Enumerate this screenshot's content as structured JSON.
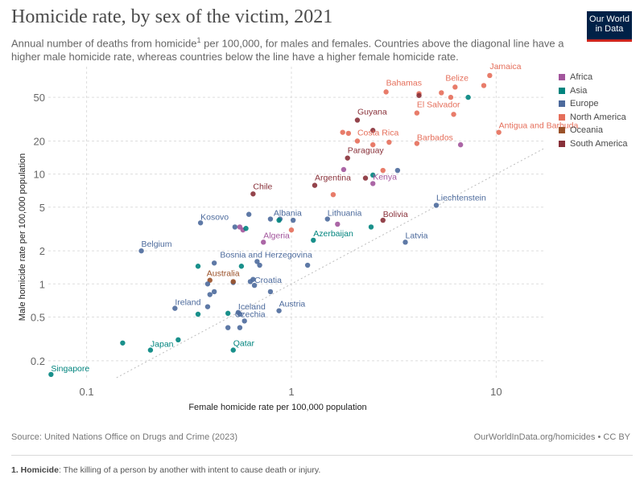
{
  "header": {
    "title": "Homicide rate, by sex of the victim, 2021",
    "subtitle_pre": "Annual number of deaths from homicide",
    "subtitle_sup": "1",
    "subtitle_post": " per 100,000, for males and females. Countries above the diagonal line have a higher male homicide rate, whereas countries below the line have a higher female homicide rate.",
    "logo_line1": "Our World",
    "logo_line2": "in Data"
  },
  "legend": [
    {
      "label": "Africa",
      "color": "#a2559c"
    },
    {
      "label": "Asia",
      "color": "#00847e"
    },
    {
      "label": "Europe",
      "color": "#4c6a9c"
    },
    {
      "label": "North America",
      "color": "#e56e5a"
    },
    {
      "label": "Oceania",
      "color": "#9a5129"
    },
    {
      "label": "South America",
      "color": "#883039"
    }
  ],
  "footer": {
    "source": "Source: United Nations Office on Drugs and Crime (2023)",
    "link": "OurWorldInData.org/homicides • CC BY",
    "footnote_term": "1. Homicide",
    "footnote_text": ": The killing of a person by another with intent to cause death or injury."
  },
  "chart_data": {
    "type": "scatter",
    "title": "Homicide rate, by sex of the victim, 2021",
    "xlabel": "Female homicide rate per 100,000 population",
    "ylabel": "Male homicide rate per 100,000 population",
    "xscale": "log",
    "yscale": "log",
    "xlim": [
      0.065,
      17
    ],
    "ylim": [
      0.14,
      95
    ],
    "xticks": [
      0.1,
      1,
      10
    ],
    "xtick_labels": [
      "0.1",
      "1",
      "10"
    ],
    "yticks": [
      0.2,
      0.5,
      1,
      2,
      5,
      10,
      20,
      50
    ],
    "ytick_labels": [
      "0.2",
      "0.5",
      "1",
      "2",
      "5",
      "10",
      "20",
      "50"
    ],
    "diagonal": "y = x",
    "points": [
      {
        "label": "Jamaica",
        "region": "North America",
        "x": 9.3,
        "y": 79,
        "show_label": true
      },
      {
        "label": "Bahamas",
        "region": "North America",
        "x": 2.9,
        "y": 56,
        "show_label": true
      },
      {
        "label": "Belize",
        "region": "North America",
        "x": 6.3,
        "y": 62,
        "show_label": true
      },
      {
        "label": "El Salvador",
        "region": "North America",
        "x": 4.1,
        "y": 36,
        "show_label": true
      },
      {
        "label": "Antigua and Barbuda",
        "region": "North America",
        "x": 10.3,
        "y": 24,
        "show_label": true
      },
      {
        "label": "Costa Rica",
        "region": "North America",
        "x": 2.1,
        "y": 20,
        "show_label": true
      },
      {
        "label": "Barbados",
        "region": "North America",
        "x": 4.1,
        "y": 19,
        "show_label": true
      },
      {
        "label": "Guyana",
        "region": "South America",
        "x": 2.1,
        "y": 31,
        "show_label": true
      },
      {
        "label": "Paraguay",
        "region": "South America",
        "x": 1.88,
        "y": 14,
        "show_label": true
      },
      {
        "label": "Argentina",
        "region": "South America",
        "x": 1.3,
        "y": 7.9,
        "show_label": true
      },
      {
        "label": "Chile",
        "region": "South America",
        "x": 0.65,
        "y": 6.6,
        "show_label": true
      },
      {
        "label": "Bolivia",
        "region": "South America",
        "x": 2.8,
        "y": 3.8,
        "show_label": true
      },
      {
        "label": "Kenya",
        "region": "Africa",
        "x": 2.5,
        "y": 8.2,
        "show_label": true
      },
      {
        "label": "Algeria",
        "region": "Africa",
        "x": 0.73,
        "y": 2.4,
        "show_label": true
      },
      {
        "label": "Azerbaijan",
        "region": "Asia",
        "x": 1.28,
        "y": 2.5,
        "show_label": true
      },
      {
        "label": "Japan",
        "region": "Asia",
        "x": 0.205,
        "y": 0.25,
        "show_label": true
      },
      {
        "label": "Qatar",
        "region": "Asia",
        "x": 0.52,
        "y": 0.25,
        "show_label": true
      },
      {
        "label": "Singapore",
        "region": "Asia",
        "x": 0.067,
        "y": 0.15,
        "show_label": true
      },
      {
        "label": "Liechtenstein",
        "region": "Europe",
        "x": 5.1,
        "y": 5.2,
        "show_label": true
      },
      {
        "label": "Latvia",
        "region": "Europe",
        "x": 3.6,
        "y": 2.4,
        "show_label": true
      },
      {
        "label": "Lithuania",
        "region": "Europe",
        "x": 1.5,
        "y": 3.9,
        "show_label": true
      },
      {
        "label": "Albania",
        "region": "Europe",
        "x": 0.88,
        "y": 3.9,
        "show_label": true
      },
      {
        "label": "Kosovo",
        "region": "Europe",
        "x": 0.36,
        "y": 3.6,
        "show_label": true
      },
      {
        "label": "Belgium",
        "region": "Europe",
        "x": 0.185,
        "y": 2.0,
        "show_label": true
      },
      {
        "label": "Bosnia and Herzegovina",
        "region": "Europe",
        "x": 0.68,
        "y": 1.6,
        "show_label": true
      },
      {
        "label": "Croatia",
        "region": "Europe",
        "x": 0.66,
        "y": 0.97,
        "show_label": true
      },
      {
        "label": "Ireland",
        "region": "Europe",
        "x": 0.27,
        "y": 0.6,
        "show_label": true
      },
      {
        "label": "Iceland",
        "region": "Europe",
        "x": 0.55,
        "y": 0.55,
        "show_label": true
      },
      {
        "label": "Austria",
        "region": "Europe",
        "x": 0.87,
        "y": 0.57,
        "show_label": true
      },
      {
        "label": "Czechia",
        "region": "Europe",
        "x": 0.59,
        "y": 0.46,
        "show_label": true
      },
      {
        "label": "Australia",
        "region": "Oceania",
        "x": 0.4,
        "y": 1.08,
        "show_label": true
      },
      {
        "label": "",
        "region": "North America",
        "x": 4.2,
        "y": 54,
        "show_label": false
      },
      {
        "label": "",
        "region": "North America",
        "x": 5.4,
        "y": 55,
        "show_label": false
      },
      {
        "label": "",
        "region": "North America",
        "x": 6.0,
        "y": 50,
        "show_label": false
      },
      {
        "label": "",
        "region": "North America",
        "x": 8.7,
        "y": 64,
        "show_label": false
      },
      {
        "label": "",
        "region": "North America",
        "x": 6.2,
        "y": 35,
        "show_label": false
      },
      {
        "label": "",
        "region": "North America",
        "x": 1.78,
        "y": 24,
        "show_label": false
      },
      {
        "label": "",
        "region": "North America",
        "x": 1.9,
        "y": 23.5,
        "show_label": false
      },
      {
        "label": "",
        "region": "North America",
        "x": 3.0,
        "y": 19.5,
        "show_label": false
      },
      {
        "label": "",
        "region": "North America",
        "x": 2.5,
        "y": 18.5,
        "show_label": false
      },
      {
        "label": "",
        "region": "North America",
        "x": 2.8,
        "y": 10.8,
        "show_label": false
      },
      {
        "label": "",
        "region": "North America",
        "x": 1.6,
        "y": 6.5,
        "show_label": false
      },
      {
        "label": "",
        "region": "North America",
        "x": 1.0,
        "y": 3.1,
        "show_label": false
      },
      {
        "label": "",
        "region": "South America",
        "x": 4.2,
        "y": 52,
        "show_label": false
      },
      {
        "label": "",
        "region": "South America",
        "x": 2.5,
        "y": 25,
        "show_label": false
      },
      {
        "label": "",
        "region": "South America",
        "x": 2.3,
        "y": 9.2,
        "show_label": false
      },
      {
        "label": "",
        "region": "Africa",
        "x": 6.7,
        "y": 18.5,
        "show_label": false
      },
      {
        "label": "",
        "region": "Africa",
        "x": 1.8,
        "y": 11,
        "show_label": false
      },
      {
        "label": "",
        "region": "Africa",
        "x": 1.68,
        "y": 3.5,
        "show_label": false
      },
      {
        "label": "",
        "region": "Africa",
        "x": 0.56,
        "y": 3.3,
        "show_label": false
      },
      {
        "label": "",
        "region": "Africa",
        "x": 0.58,
        "y": 3.1,
        "show_label": false
      },
      {
        "label": "",
        "region": "Asia",
        "x": 7.3,
        "y": 50,
        "show_label": false
      },
      {
        "label": "",
        "region": "Asia",
        "x": 2.5,
        "y": 9.8,
        "show_label": false
      },
      {
        "label": "",
        "region": "Asia",
        "x": 2.45,
        "y": 3.3,
        "show_label": false
      },
      {
        "label": "",
        "region": "Asia",
        "x": 0.6,
        "y": 3.2,
        "show_label": false
      },
      {
        "label": "",
        "region": "Asia",
        "x": 0.87,
        "y": 3.8,
        "show_label": false
      },
      {
        "label": "",
        "region": "Asia",
        "x": 0.35,
        "y": 1.45,
        "show_label": false
      },
      {
        "label": "",
        "region": "Asia",
        "x": 0.57,
        "y": 1.45,
        "show_label": false
      },
      {
        "label": "",
        "region": "Asia",
        "x": 0.35,
        "y": 0.53,
        "show_label": false
      },
      {
        "label": "",
        "region": "Asia",
        "x": 0.49,
        "y": 0.54,
        "show_label": false
      },
      {
        "label": "",
        "region": "Asia",
        "x": 0.15,
        "y": 0.29,
        "show_label": false
      },
      {
        "label": "",
        "region": "Asia",
        "x": 0.28,
        "y": 0.31,
        "show_label": false
      },
      {
        "label": "",
        "region": "Europe",
        "x": 3.3,
        "y": 10.8,
        "show_label": false
      },
      {
        "label": "",
        "region": "Europe",
        "x": 0.62,
        "y": 4.3,
        "show_label": false
      },
      {
        "label": "",
        "region": "Europe",
        "x": 0.79,
        "y": 3.9,
        "show_label": false
      },
      {
        "label": "",
        "region": "Europe",
        "x": 1.02,
        "y": 3.8,
        "show_label": false
      },
      {
        "label": "",
        "region": "Europe",
        "x": 0.53,
        "y": 3.3,
        "show_label": false
      },
      {
        "label": "",
        "region": "Europe",
        "x": 0.42,
        "y": 1.55,
        "show_label": false
      },
      {
        "label": "",
        "region": "Europe",
        "x": 0.7,
        "y": 1.48,
        "show_label": false
      },
      {
        "label": "",
        "region": "Europe",
        "x": 1.2,
        "y": 1.48,
        "show_label": false
      },
      {
        "label": "",
        "region": "Europe",
        "x": 0.65,
        "y": 1.1,
        "show_label": false
      },
      {
        "label": "",
        "region": "Europe",
        "x": 0.63,
        "y": 1.05,
        "show_label": false
      },
      {
        "label": "",
        "region": "Europe",
        "x": 0.52,
        "y": 1.03,
        "show_label": false
      },
      {
        "label": "",
        "region": "Europe",
        "x": 0.39,
        "y": 1.0,
        "show_label": false
      },
      {
        "label": "",
        "region": "Europe",
        "x": 0.79,
        "y": 0.85,
        "show_label": false
      },
      {
        "label": "",
        "region": "Europe",
        "x": 0.42,
        "y": 0.85,
        "show_label": false
      },
      {
        "label": "",
        "region": "Europe",
        "x": 0.4,
        "y": 0.8,
        "show_label": false
      },
      {
        "label": "",
        "region": "Europe",
        "x": 0.39,
        "y": 0.62,
        "show_label": false
      },
      {
        "label": "",
        "region": "Europe",
        "x": 0.56,
        "y": 0.53,
        "show_label": false
      },
      {
        "label": "",
        "region": "Europe",
        "x": 0.49,
        "y": 0.4,
        "show_label": false
      },
      {
        "label": "",
        "region": "Europe",
        "x": 0.56,
        "y": 0.4,
        "show_label": false
      },
      {
        "label": "",
        "region": "Oceania",
        "x": 0.52,
        "y": 1.05,
        "show_label": false
      }
    ]
  }
}
